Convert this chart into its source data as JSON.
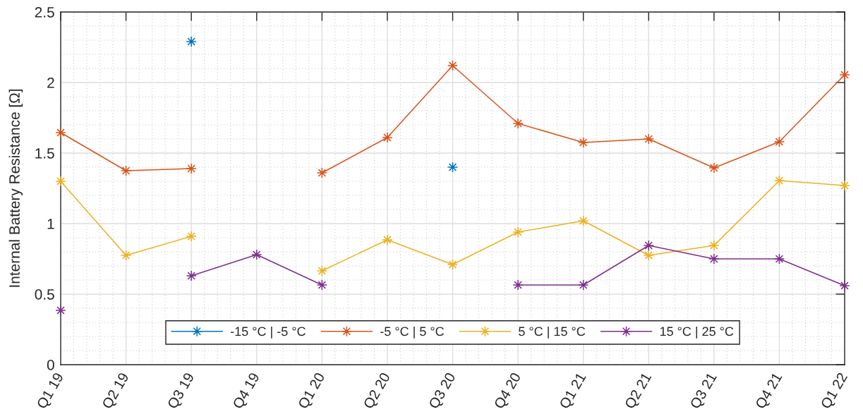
{
  "chart_data": {
    "type": "line",
    "ylabel": "Internal Battery Resistance [Ω]",
    "categories": [
      "Q1 19",
      "Q2 19",
      "Q3 19",
      "Q4 19",
      "Q1 20",
      "Q2 20",
      "Q3 20",
      "Q4 20",
      "Q1 21",
      "Q2 21",
      "Q3 21",
      "Q4 21",
      "Q1 22"
    ],
    "ylim": [
      0,
      2.5
    ],
    "yticks": [
      0,
      0.5,
      1,
      1.5,
      2,
      2.5
    ],
    "grid": true,
    "legend": "bottom",
    "marker": "star",
    "line_style": "solid",
    "series": [
      {
        "name": "-15 °C | -5 °C",
        "color": "#0072bd",
        "values": [
          null,
          null,
          2.29,
          null,
          null,
          null,
          1.4,
          null,
          null,
          null,
          null,
          null,
          null
        ]
      },
      {
        "name": "-5 °C | 5 °C",
        "color": "#d95319",
        "values": [
          1.645,
          1.375,
          1.39,
          null,
          1.36,
          1.61,
          2.12,
          1.71,
          1.575,
          1.6,
          1.395,
          1.58,
          2.055
        ]
      },
      {
        "name": "5 °C | 15 °C",
        "color": "#edb120",
        "values": [
          1.3,
          0.775,
          0.91,
          null,
          0.665,
          0.885,
          0.71,
          0.94,
          1.02,
          0.775,
          0.845,
          1.305,
          1.27
        ]
      },
      {
        "name": "15 °C | 25 °C",
        "color": "#7e2f8e",
        "values": [
          0.385,
          null,
          0.63,
          0.78,
          0.565,
          null,
          null,
          0.565,
          0.565,
          0.845,
          0.75,
          0.75,
          0.56
        ]
      }
    ]
  }
}
